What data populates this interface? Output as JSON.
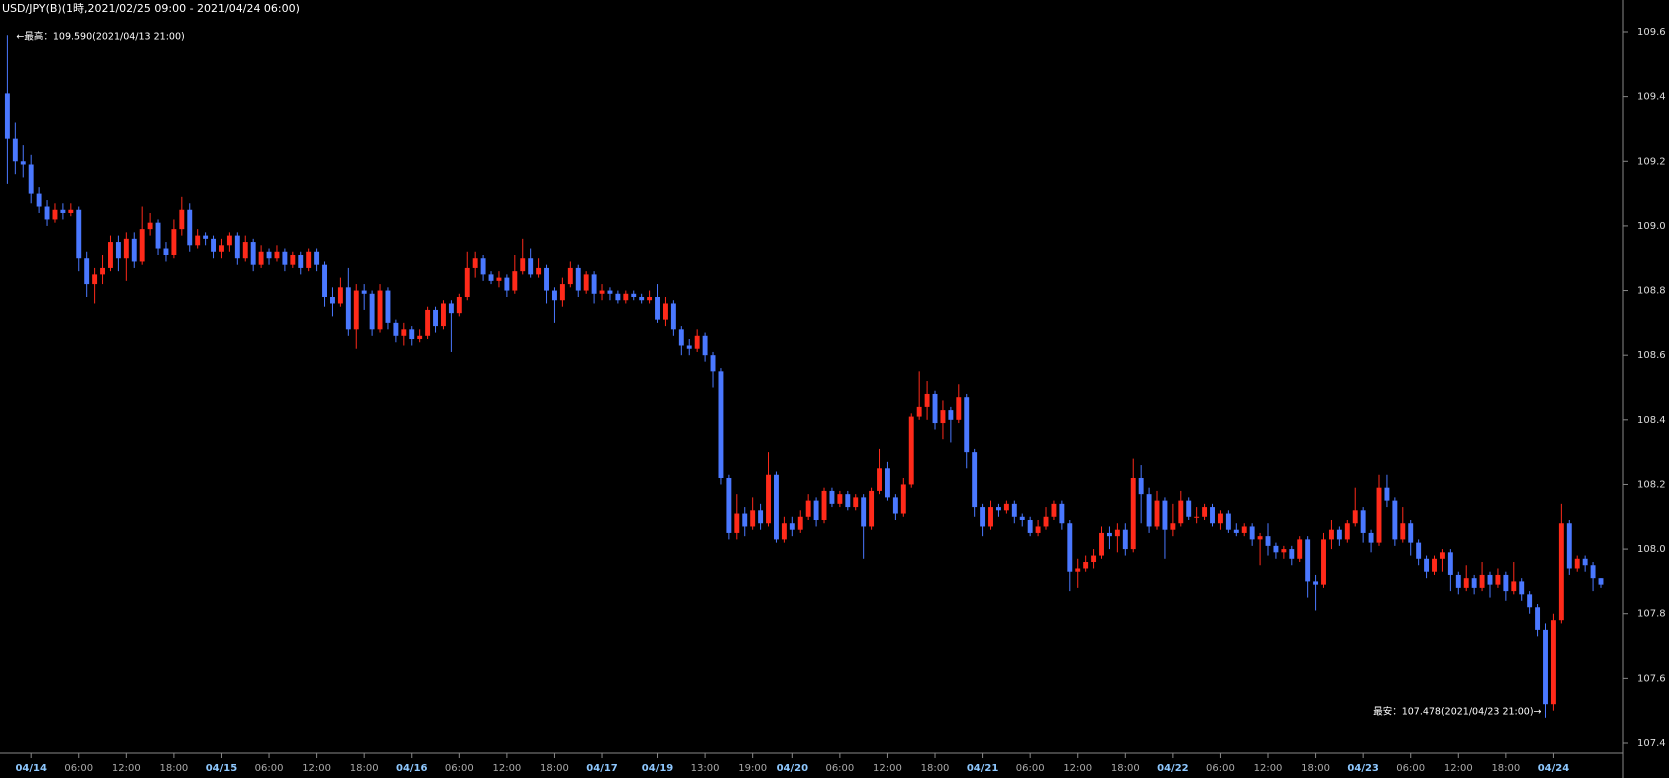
{
  "chart_data": {
    "type": "candlestick",
    "title": "USD/JPY(B)(1時,2021/02/25 09:00 - 2021/04/24 06:00)",
    "annotations": [
      "←最高：109.590(2021/04/13 21:00)",
      "最安：107.478(2021/04/23 21:00)→"
    ],
    "up_color": "#ff2a1a",
    "down_color": "#4a78ff",
    "ylim": [
      107.4,
      109.6
    ],
    "yticks": [
      107.4,
      107.6,
      107.8,
      {
        "value": 108,
        "label": "108.0"
      },
      108.2,
      108.4,
      108.6,
      108.8,
      {
        "value": 109,
        "label": "109.0"
      },
      109.2,
      109.4,
      109.6
    ],
    "categories": [
      null,
      null,
      null,
      "04/14",
      null,
      null,
      null,
      null,
      null,
      "06:00",
      null,
      null,
      null,
      null,
      null,
      "12:00",
      null,
      null,
      null,
      null,
      null,
      "18:00",
      null,
      null,
      null,
      null,
      null,
      "04/15",
      null,
      null,
      null,
      null,
      null,
      "06:00",
      null,
      null,
      null,
      null,
      null,
      "12:00",
      null,
      null,
      null,
      null,
      null,
      "18:00",
      null,
      null,
      null,
      null,
      null,
      "04/16",
      null,
      null,
      null,
      null,
      null,
      "06:00",
      null,
      null,
      null,
      null,
      null,
      "12:00",
      null,
      null,
      null,
      null,
      null,
      "18:00",
      null,
      null,
      null,
      null,
      null,
      "04/17",
      null,
      null,
      null,
      null,
      null,
      null,
      "04/19",
      null,
      null,
      null,
      null,
      null,
      "13:00",
      null,
      null,
      null,
      null,
      null,
      "19:00",
      null,
      null,
      null,
      null,
      "04/20",
      null,
      null,
      null,
      null,
      null,
      "06:00",
      null,
      null,
      null,
      null,
      null,
      "12:00",
      null,
      null,
      null,
      null,
      null,
      "18:00",
      null,
      null,
      null,
      null,
      null,
      "04/21",
      null,
      null,
      null,
      null,
      null,
      "06:00",
      null,
      null,
      null,
      null,
      null,
      "12:00",
      null,
      null,
      null,
      null,
      null,
      "18:00",
      null,
      null,
      null,
      null,
      null,
      "04/22",
      null,
      null,
      null,
      null,
      null,
      "06:00",
      null,
      null,
      null,
      null,
      null,
      "12:00",
      null,
      null,
      null,
      null,
      null,
      "18:00",
      null,
      null,
      null,
      null,
      null,
      "04/23",
      null,
      null,
      null,
      null,
      null,
      "06:00",
      null,
      null,
      null,
      null,
      null,
      "12:00",
      null,
      null,
      null,
      null,
      null,
      "18:00",
      null,
      null,
      null,
      null,
      null,
      "04/24",
      null,
      null,
      null,
      null,
      null,
      null
    ],
    "open": [
      109.41,
      109.27,
      109.2,
      109.19,
      109.1,
      109.06,
      109.02,
      109.05,
      109.04,
      109.05,
      108.9,
      108.82,
      108.85,
      108.87,
      108.95,
      108.9,
      108.96,
      108.89,
      108.99,
      109.01,
      108.93,
      108.91,
      108.99,
      109.05,
      108.94,
      108.97,
      108.96,
      108.92,
      108.94,
      108.97,
      108.9,
      108.95,
      108.88,
      108.92,
      108.9,
      108.92,
      108.88,
      108.91,
      108.87,
      108.92,
      108.88,
      108.78,
      108.76,
      108.81,
      108.68,
      108.8,
      108.79,
      108.68,
      108.8,
      108.7,
      108.66,
      108.68,
      108.65,
      108.66,
      108.74,
      108.69,
      108.76,
      108.73,
      108.78,
      108.87,
      108.9,
      108.85,
      108.83,
      108.84,
      108.8,
      108.86,
      108.9,
      108.85,
      108.87,
      108.8,
      108.77,
      108.82,
      108.87,
      108.8,
      108.85,
      108.79,
      108.8,
      108.79,
      108.77,
      108.79,
      108.78,
      108.77,
      108.78,
      108.71,
      108.76,
      108.68,
      108.63,
      108.62,
      108.66,
      108.6,
      108.55,
      108.22,
      108.05,
      108.11,
      108.07,
      108.12,
      108.08,
      108.23,
      108.03,
      108.08,
      108.06,
      108.1,
      108.15,
      108.09,
      108.18,
      108.14,
      108.17,
      108.13,
      108.16,
      108.07,
      108.18,
      108.25,
      108.16,
      108.11,
      108.2,
      108.41,
      108.44,
      108.48,
      108.39,
      108.43,
      108.4,
      108.47,
      108.3,
      108.13,
      108.07,
      108.13,
      108.12,
      108.14,
      108.1,
      108.09,
      108.05,
      108.07,
      108.1,
      108.14,
      108.08,
      107.93,
      107.94,
      107.96,
      107.98,
      108.05,
      108.04,
      108.06,
      108.0,
      108.22,
      108.17,
      108.07,
      108.15,
      108.06,
      108.08,
      108.15,
      108.1,
      108.1,
      108.13,
      108.08,
      108.11,
      108.06,
      108.05,
      108.07,
      108.03,
      108.04,
      108.01,
      107.99,
      108.0,
      107.97,
      108.03,
      107.9,
      107.89,
      108.03,
      108.06,
      108.03,
      108.08,
      108.12,
      108.05,
      108.02,
      108.19,
      108.15,
      108.03,
      108.08,
      108.02,
      107.97,
      107.93,
      107.97,
      107.99,
      107.92,
      107.88,
      107.91,
      107.88,
      107.92,
      107.89,
      107.92,
      107.87,
      107.9,
      107.86,
      107.82,
      107.75,
      107.52,
      107.78,
      108.08,
      107.94,
      107.97,
      107.95,
      107.91
    ],
    "high": [
      109.59,
      109.32,
      109.25,
      109.22,
      109.12,
      109.08,
      109.07,
      109.07,
      109.07,
      109.06,
      108.92,
      108.87,
      108.91,
      108.97,
      108.97,
      108.98,
      108.98,
      109.06,
      109.04,
      109.02,
      108.95,
      109.02,
      109.09,
      109.07,
      108.99,
      108.98,
      108.97,
      108.96,
      108.98,
      108.98,
      108.97,
      108.96,
      108.94,
      108.93,
      108.94,
      108.93,
      108.92,
      108.92,
      108.93,
      108.93,
      108.89,
      108.81,
      108.84,
      108.87,
      108.82,
      108.82,
      108.8,
      108.82,
      108.81,
      108.71,
      108.7,
      108.69,
      108.68,
      108.75,
      108.75,
      108.77,
      108.77,
      108.79,
      108.92,
      108.92,
      108.91,
      108.86,
      108.86,
      108.85,
      108.91,
      108.96,
      108.93,
      108.9,
      108.88,
      108.81,
      108.84,
      108.89,
      108.88,
      108.86,
      108.86,
      108.82,
      108.81,
      108.8,
      108.8,
      108.8,
      108.79,
      108.8,
      108.82,
      108.78,
      108.77,
      108.69,
      108.65,
      108.68,
      108.67,
      108.61,
      108.56,
      108.23,
      108.17,
      108.13,
      108.16,
      108.14,
      108.3,
      108.24,
      108.1,
      108.1,
      108.12,
      108.17,
      108.16,
      108.19,
      108.19,
      108.18,
      108.18,
      108.17,
      108.17,
      108.19,
      108.31,
      108.27,
      108.17,
      108.22,
      108.42,
      108.55,
      108.52,
      108.49,
      108.46,
      108.44,
      108.51,
      108.48,
      108.31,
      108.14,
      108.15,
      108.14,
      108.15,
      108.15,
      108.11,
      108.1,
      108.09,
      108.13,
      108.15,
      108.15,
      108.09,
      107.97,
      107.98,
      108.0,
      108.07,
      108.07,
      108.08,
      108.08,
      108.28,
      108.26,
      108.19,
      108.18,
      108.16,
      108.14,
      108.18,
      108.16,
      108.13,
      108.14,
      108.14,
      108.12,
      108.12,
      108.08,
      108.08,
      108.08,
      108.05,
      108.08,
      108.02,
      108.01,
      108.01,
      108.04,
      108.04,
      107.92,
      108.05,
      108.09,
      108.07,
      108.09,
      108.19,
      108.13,
      108.06,
      108.23,
      108.23,
      108.16,
      108.13,
      108.09,
      108.03,
      107.98,
      107.98,
      108.0,
      108.0,
      107.93,
      107.95,
      107.92,
      107.96,
      107.93,
      107.94,
      107.93,
      107.96,
      107.91,
      107.87,
      107.83,
      107.77,
      107.8,
      108.14,
      108.09,
      107.98,
      107.98,
      107.96,
      107.91
    ],
    "low": [
      109.13,
      109.16,
      109.15,
      109.07,
      109.04,
      109.0,
      109.01,
      109.02,
      109.03,
      108.86,
      108.78,
      108.76,
      108.82,
      108.86,
      108.86,
      108.83,
      108.87,
      108.88,
      108.97,
      108.91,
      108.89,
      108.9,
      108.97,
      108.92,
      108.93,
      108.94,
      108.9,
      108.9,
      108.92,
      108.88,
      108.89,
      108.86,
      108.87,
      108.88,
      108.89,
      108.86,
      108.87,
      108.85,
      108.86,
      108.86,
      108.75,
      108.72,
      108.75,
      108.66,
      108.62,
      108.74,
      108.66,
      108.67,
      108.68,
      108.64,
      108.63,
      108.63,
      108.64,
      108.65,
      108.67,
      108.68,
      108.61,
      108.72,
      108.77,
      108.84,
      108.83,
      108.82,
      108.81,
      108.78,
      108.79,
      108.85,
      108.84,
      108.84,
      108.76,
      108.7,
      108.75,
      108.81,
      108.78,
      108.79,
      108.76,
      108.77,
      108.77,
      108.76,
      108.76,
      108.77,
      108.76,
      108.76,
      108.7,
      108.69,
      108.66,
      108.6,
      108.6,
      108.61,
      108.58,
      108.5,
      108.2,
      108.03,
      108.03,
      108.04,
      108.06,
      108.06,
      108.07,
      108.02,
      108.02,
      108.04,
      108.05,
      108.09,
      108.07,
      108.08,
      108.13,
      108.13,
      108.12,
      108.12,
      107.97,
      108.06,
      108.17,
      108.15,
      108.09,
      108.1,
      108.19,
      108.4,
      108.4,
      108.37,
      108.34,
      108.33,
      108.39,
      108.25,
      108.1,
      108.04,
      108.06,
      108.1,
      108.11,
      108.08,
      108.07,
      108.04,
      108.04,
      108.06,
      108.09,
      108.06,
      107.87,
      107.88,
      107.93,
      107.94,
      107.97,
      108.0,
      107.99,
      107.98,
      107.99,
      108.08,
      108.05,
      108.06,
      107.97,
      108.04,
      108.07,
      108.09,
      108.08,
      108.09,
      108.07,
      108.06,
      108.05,
      108.04,
      108.04,
      108.01,
      107.95,
      107.98,
      107.97,
      107.97,
      107.95,
      107.96,
      107.85,
      107.81,
      107.88,
      108.0,
      108.01,
      108.02,
      108.07,
      108.02,
      107.99,
      108.01,
      108.13,
      108.01,
      108.02,
      107.98,
      107.95,
      107.91,
      107.92,
      107.93,
      107.87,
      107.86,
      107.87,
      107.86,
      107.87,
      107.85,
      107.88,
      107.84,
      107.86,
      107.84,
      107.8,
      107.73,
      107.478,
      107.5,
      107.77,
      107.92,
      107.93,
      107.93,
      107.87,
      107.88
    ],
    "close": [
      109.27,
      109.2,
      109.19,
      109.1,
      109.06,
      109.02,
      109.05,
      109.04,
      109.05,
      108.9,
      108.82,
      108.85,
      108.87,
      108.95,
      108.9,
      108.96,
      108.89,
      108.99,
      109.01,
      108.93,
      108.91,
      108.99,
      109.05,
      108.94,
      108.97,
      108.96,
      108.92,
      108.94,
      108.97,
      108.9,
      108.95,
      108.88,
      108.92,
      108.9,
      108.92,
      108.88,
      108.91,
      108.87,
      108.92,
      108.88,
      108.78,
      108.76,
      108.81,
      108.68,
      108.8,
      108.79,
      108.68,
      108.8,
      108.7,
      108.66,
      108.68,
      108.65,
      108.66,
      108.74,
      108.69,
      108.76,
      108.73,
      108.78,
      108.87,
      108.9,
      108.85,
      108.83,
      108.84,
      108.8,
      108.86,
      108.9,
      108.85,
      108.87,
      108.8,
      108.77,
      108.82,
      108.87,
      108.8,
      108.85,
      108.79,
      108.8,
      108.79,
      108.77,
      108.79,
      108.78,
      108.77,
      108.78,
      108.71,
      108.76,
      108.68,
      108.63,
      108.62,
      108.66,
      108.6,
      108.55,
      108.22,
      108.05,
      108.11,
      108.07,
      108.12,
      108.08,
      108.23,
      108.03,
      108.08,
      108.06,
      108.1,
      108.15,
      108.09,
      108.18,
      108.14,
      108.17,
      108.13,
      108.16,
      108.07,
      108.18,
      108.25,
      108.16,
      108.11,
      108.2,
      108.41,
      108.44,
      108.48,
      108.39,
      108.43,
      108.4,
      108.47,
      108.3,
      108.13,
      108.07,
      108.13,
      108.12,
      108.14,
      108.1,
      108.09,
      108.05,
      108.07,
      108.1,
      108.14,
      108.08,
      107.93,
      107.94,
      107.96,
      107.98,
      108.05,
      108.04,
      108.06,
      108.0,
      108.22,
      108.17,
      108.07,
      108.15,
      108.06,
      108.08,
      108.15,
      108.1,
      108.1,
      108.13,
      108.08,
      108.11,
      108.06,
      108.05,
      108.07,
      108.03,
      108.04,
      108.01,
      107.99,
      108.0,
      107.97,
      108.03,
      107.9,
      107.89,
      108.03,
      108.06,
      108.03,
      108.08,
      108.12,
      108.05,
      108.02,
      108.19,
      108.15,
      108.03,
      108.08,
      108.02,
      107.97,
      107.93,
      107.97,
      107.99,
      107.92,
      107.88,
      107.91,
      107.88,
      107.92,
      107.89,
      107.92,
      107.87,
      107.9,
      107.86,
      107.82,
      107.75,
      107.52,
      107.78,
      108.08,
      107.94,
      107.97,
      107.95,
      107.91,
      107.89
    ]
  }
}
